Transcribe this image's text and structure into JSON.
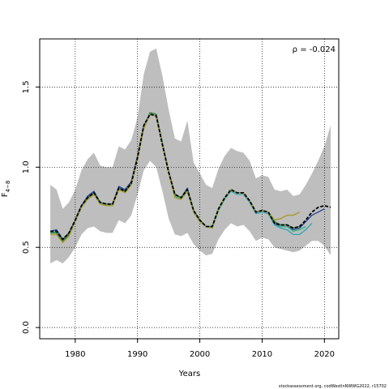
{
  "chart_data": {
    "type": "line",
    "title": "",
    "xlabel": "Years",
    "ylabel_base": "F",
    "ylabel_sub": "4−8",
    "xlim": [
      1974.3,
      2022.3
    ],
    "ylim": [
      -0.07,
      1.8
    ],
    "x_ticks": [
      1980,
      1990,
      2000,
      2010,
      2020
    ],
    "y_ticks": [
      0.0,
      0.5,
      1.0,
      1.5
    ],
    "y_tick_labels": [
      "0.0",
      "0.5",
      "1.0",
      "1.5"
    ],
    "grid": true,
    "annotation": "ρ = -0.024",
    "credit": "stockassessment.org, codWestInNWWG2022, r15702",
    "band_color": "#bebebe",
    "band": {
      "x": [
        1976,
        1977,
        1978,
        1979,
        1980,
        1981,
        1982,
        1983,
        1984,
        1985,
        1986,
        1987,
        1988,
        1989,
        1990,
        1991,
        1992,
        1993,
        1994,
        1995,
        1996,
        1997,
        1998,
        1999,
        2000,
        2001,
        2002,
        2003,
        2004,
        2005,
        2006,
        2007,
        2008,
        2009,
        2010,
        2011,
        2012,
        2013,
        2014,
        2015,
        2016,
        2017,
        2018,
        2019,
        2020,
        2021
      ],
      "upper": [
        0.89,
        0.86,
        0.74,
        0.78,
        0.86,
        0.98,
        1.05,
        1.09,
        1.01,
        1.0,
        1.0,
        1.13,
        1.11,
        1.17,
        1.31,
        1.58,
        1.72,
        1.74,
        1.57,
        1.36,
        1.18,
        1.16,
        1.29,
        1.03,
        0.96,
        0.89,
        0.87,
        0.99,
        1.07,
        1.12,
        1.1,
        1.09,
        1.04,
        0.93,
        0.95,
        0.94,
        0.86,
        0.85,
        0.86,
        0.82,
        0.83,
        0.89,
        0.96,
        1.04,
        1.13,
        1.26
      ],
      "lower": [
        0.4,
        0.42,
        0.4,
        0.44,
        0.5,
        0.58,
        0.62,
        0.63,
        0.6,
        0.59,
        0.59,
        0.67,
        0.65,
        0.7,
        0.83,
        0.98,
        1.04,
        1.0,
        0.85,
        0.68,
        0.58,
        0.57,
        0.59,
        0.52,
        0.48,
        0.45,
        0.46,
        0.55,
        0.61,
        0.65,
        0.63,
        0.64,
        0.6,
        0.54,
        0.56,
        0.55,
        0.5,
        0.49,
        0.48,
        0.47,
        0.48,
        0.51,
        0.54,
        0.54,
        0.51,
        0.45
      ]
    },
    "series": [
      {
        "color": "#1f3f9a",
        "width": 1.3,
        "dash": "",
        "x": [
          1976,
          1977,
          1978,
          1979,
          1980,
          1981,
          1982,
          1983,
          1984,
          1985,
          1986,
          1987,
          1988,
          1989,
          1990,
          1991,
          1992,
          1993,
          1994,
          1995,
          1996,
          1997,
          1998,
          1999,
          2000,
          2001,
          2002,
          2003,
          2004,
          2005,
          2006,
          2007,
          2008,
          2009,
          2010,
          2011,
          2012,
          2013,
          2014,
          2015,
          2016,
          2017,
          2018,
          2019,
          2020
        ],
        "y": [
          0.6,
          0.61,
          0.55,
          0.59,
          0.67,
          0.76,
          0.82,
          0.85,
          0.78,
          0.77,
          0.77,
          0.88,
          0.86,
          0.91,
          1.07,
          1.26,
          1.33,
          1.32,
          1.15,
          0.97,
          0.83,
          0.81,
          0.87,
          0.73,
          0.67,
          0.63,
          0.63,
          0.74,
          0.81,
          0.86,
          0.84,
          0.84,
          0.79,
          0.72,
          0.73,
          0.72,
          0.65,
          0.63,
          0.63,
          0.61,
          0.62,
          0.66,
          0.7,
          0.72,
          0.74
        ]
      },
      {
        "color": "#2aa6b8",
        "width": 1.3,
        "dash": "",
        "x": [
          1976,
          1977,
          1978,
          1979,
          1980,
          1981,
          1982,
          1983,
          1984,
          1985,
          1986,
          1987,
          1988,
          1989,
          1990,
          1991,
          1992,
          1993,
          1994,
          1995,
          1996,
          1997,
          1998,
          1999,
          2000,
          2001,
          2002,
          2003,
          2004,
          2005,
          2006,
          2007,
          2008,
          2009,
          2010,
          2011,
          2012,
          2013,
          2014,
          2015,
          2016,
          2017,
          2018
        ],
        "y": [
          0.59,
          0.6,
          0.54,
          0.58,
          0.66,
          0.75,
          0.81,
          0.84,
          0.78,
          0.77,
          0.77,
          0.87,
          0.85,
          0.9,
          1.06,
          1.25,
          1.33,
          1.32,
          1.14,
          0.97,
          0.83,
          0.81,
          0.86,
          0.72,
          0.66,
          0.63,
          0.62,
          0.73,
          0.8,
          0.85,
          0.83,
          0.83,
          0.78,
          0.71,
          0.72,
          0.71,
          0.64,
          0.62,
          0.61,
          0.58,
          0.58,
          0.61,
          0.65
        ]
      },
      {
        "color": "#35b779",
        "width": 1.3,
        "dash": "",
        "x": [
          1976,
          1977,
          1978,
          1979,
          1980,
          1981,
          1982,
          1983,
          1984,
          1985,
          1986,
          1987,
          1988,
          1989,
          1990,
          1991,
          1992,
          1993,
          1994,
          1995,
          1996,
          1997,
          1998,
          1999,
          2000,
          2001,
          2002,
          2003,
          2004,
          2005,
          2006,
          2007,
          2008,
          2009,
          2010,
          2011,
          2012,
          2013,
          2014,
          2015,
          2016,
          2017
        ],
        "y": [
          0.59,
          0.6,
          0.54,
          0.58,
          0.66,
          0.75,
          0.81,
          0.84,
          0.77,
          0.76,
          0.76,
          0.87,
          0.85,
          0.9,
          1.06,
          1.25,
          1.34,
          1.33,
          1.15,
          0.97,
          0.82,
          0.8,
          0.85,
          0.72,
          0.66,
          0.63,
          0.62,
          0.73,
          0.81,
          0.86,
          0.84,
          0.84,
          0.79,
          0.72,
          0.73,
          0.72,
          0.66,
          0.63,
          0.63,
          0.6,
          0.61,
          0.63
        ]
      },
      {
        "color": "#2f7a3a",
        "width": 1.3,
        "dash": "",
        "x": [
          1976,
          1977,
          1978,
          1979,
          1980,
          1981,
          1982,
          1983,
          1984,
          1985,
          1986,
          1987,
          1988,
          1989,
          1990,
          1991,
          1992,
          1993,
          1994,
          1995,
          1996,
          1997,
          1998,
          1999,
          2000,
          2001,
          2002,
          2003,
          2004,
          2005,
          2006,
          2007,
          2008,
          2009,
          2010,
          2011,
          2012,
          2013,
          2014,
          2015,
          2016
        ],
        "y": [
          0.59,
          0.59,
          0.54,
          0.58,
          0.66,
          0.75,
          0.81,
          0.84,
          0.78,
          0.77,
          0.77,
          0.87,
          0.85,
          0.9,
          1.06,
          1.25,
          1.34,
          1.33,
          1.15,
          0.97,
          0.83,
          0.81,
          0.86,
          0.73,
          0.67,
          0.63,
          0.63,
          0.74,
          0.81,
          0.86,
          0.84,
          0.84,
          0.79,
          0.72,
          0.73,
          0.72,
          0.66,
          0.64,
          0.64,
          0.62,
          0.63
        ]
      },
      {
        "color": "#a89a2a",
        "width": 1.4,
        "dash": "",
        "x": [
          1976,
          1977,
          1978,
          1979,
          1980,
          1981,
          1982,
          1983,
          1984,
          1985,
          1986,
          1987,
          1988,
          1989,
          1990,
          1991,
          1992,
          1993,
          1994,
          1995,
          1996,
          1997,
          1998,
          1999,
          2000,
          2001,
          2002,
          2003,
          2004,
          2005,
          2006,
          2007,
          2008,
          2009,
          2010,
          2011,
          2012,
          2013,
          2014,
          2015,
          2016
        ],
        "y": [
          0.58,
          0.58,
          0.53,
          0.57,
          0.66,
          0.75,
          0.8,
          0.83,
          0.77,
          0.76,
          0.76,
          0.86,
          0.84,
          0.89,
          1.05,
          1.24,
          1.33,
          1.32,
          1.14,
          0.96,
          0.81,
          0.8,
          0.85,
          0.72,
          0.66,
          0.63,
          0.62,
          0.74,
          0.81,
          0.86,
          0.84,
          0.84,
          0.79,
          0.72,
          0.73,
          0.72,
          0.67,
          0.68,
          0.7,
          0.7,
          0.72
        ]
      },
      {
        "color": "#000000",
        "width": 1.8,
        "dash": "4,2",
        "x": [
          1976,
          1977,
          1978,
          1979,
          1980,
          1981,
          1982,
          1983,
          1984,
          1985,
          1986,
          1987,
          1988,
          1989,
          1990,
          1991,
          1992,
          1993,
          1994,
          1995,
          1996,
          1997,
          1998,
          1999,
          2000,
          2001,
          2002,
          2003,
          2004,
          2005,
          2006,
          2007,
          2008,
          2009,
          2010,
          2011,
          2012,
          2013,
          2014,
          2015,
          2016,
          2017,
          2018,
          2019,
          2020,
          2021
        ],
        "y": [
          0.6,
          0.6,
          0.55,
          0.59,
          0.67,
          0.76,
          0.81,
          0.84,
          0.78,
          0.77,
          0.77,
          0.87,
          0.85,
          0.9,
          1.06,
          1.26,
          1.33,
          1.32,
          1.14,
          0.97,
          0.83,
          0.81,
          0.86,
          0.73,
          0.67,
          0.63,
          0.63,
          0.74,
          0.81,
          0.86,
          0.84,
          0.84,
          0.79,
          0.72,
          0.73,
          0.72,
          0.65,
          0.64,
          0.64,
          0.62,
          0.63,
          0.67,
          0.72,
          0.75,
          0.76,
          0.75
        ]
      }
    ]
  }
}
